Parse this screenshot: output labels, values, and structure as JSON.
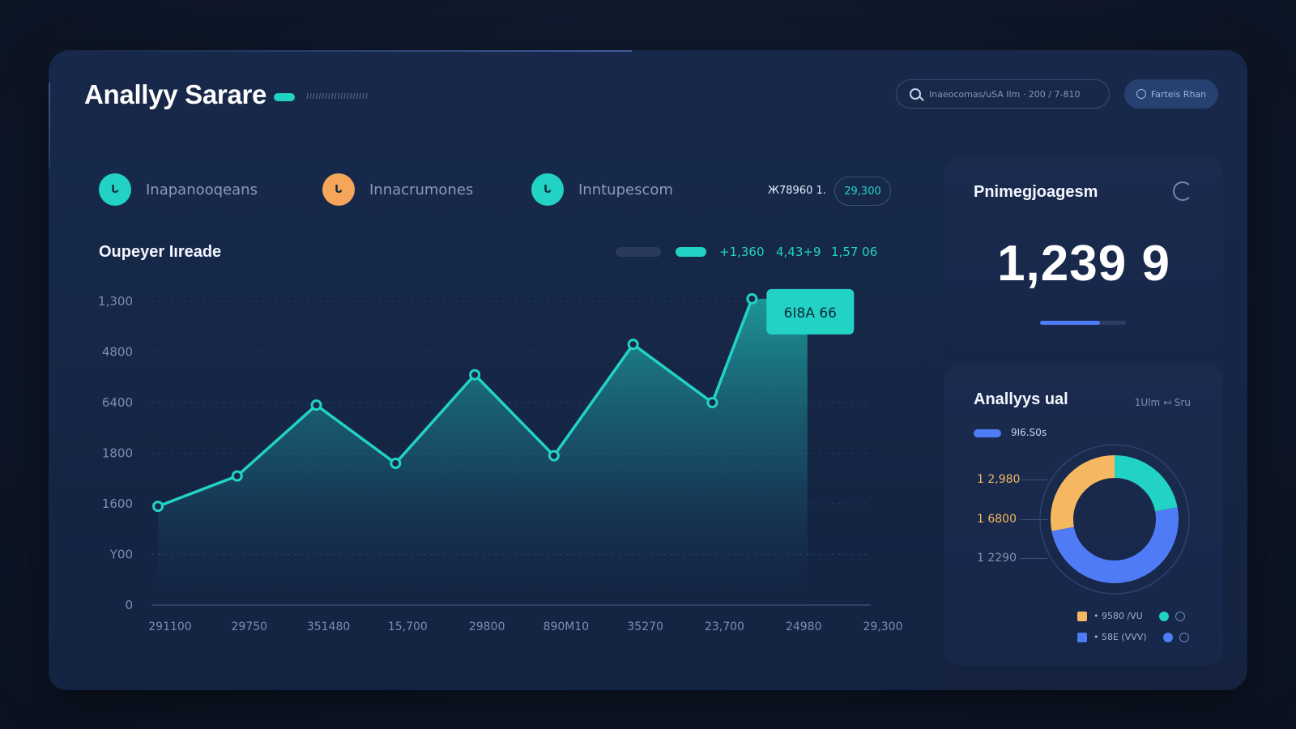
{
  "header": {
    "title": "Anallyy Sarare",
    "subtitle": "ıııııııııııııııııııı",
    "search_text": "Inaeocomas/uSA Ilm · 200 / 7-810",
    "action_label": "Farteis Rhan",
    "accent_color": "#22d3c5"
  },
  "stat_tabs": [
    {
      "label": "Inapanooqeans",
      "icon": "ᒐ",
      "color": "#22d3c5"
    },
    {
      "label": "Innacrumones",
      "icon": "ᒐ",
      "color": "#f5a65b"
    },
    {
      "label": "Inntupescom",
      "icon": "ᒐ",
      "color": "#22d3c5"
    }
  ],
  "tab_value": "Ж78960 1.",
  "tab_pill": "29,300",
  "chart_header": {
    "title": "Oupeyer Iıreade",
    "legend_values": [
      "+1,360",
      "4,43+9",
      "1,57 06"
    ]
  },
  "chart_data": {
    "type": "area",
    "title": "Oupeyer Iıreade",
    "y_tick_labels": [
      "1,300",
      "4800",
      "6400",
      "1800",
      "1600",
      "Y00",
      "0"
    ],
    "x_tick_labels": [
      "291100",
      "29750",
      "351480",
      "15,700",
      "29800",
      "890M10",
      "35270",
      "23,700",
      "24980",
      "29,300"
    ],
    "series": [
      {
        "points": [
          [
            0,
            1.95
          ],
          [
            1,
            2.55
          ],
          [
            2,
            3.95
          ],
          [
            3,
            2.8
          ],
          [
            4,
            4.55
          ],
          [
            5,
            2.95
          ],
          [
            6,
            5.15
          ],
          [
            7,
            4.0
          ],
          [
            7.5,
            6.05
          ],
          [
            8.2,
            6.05
          ]
        ]
      }
    ],
    "y_range": [
      0,
      6
    ],
    "grid": true,
    "callout": "6I8A 66",
    "line_color": "#22d3c5"
  },
  "panel_a": {
    "title": "Pnimegjoagesm",
    "big_number": "1,239 9",
    "progress": 0.7
  },
  "panel_b": {
    "title": "Anallyys ual",
    "meta": "1Ulm  ↤ Sru",
    "legend_text": "9I6.S0s",
    "donut_labels": [
      {
        "text": "1 2,980",
        "color": "#f5b860"
      },
      {
        "text": "1 6800",
        "color": "#f5b860"
      },
      {
        "text": "1 2290",
        "color": "#8391b0"
      }
    ],
    "donut": [
      {
        "name": "teal",
        "value": 0.22,
        "color": "#22d3c5"
      },
      {
        "name": "blue",
        "value": 0.5,
        "color": "#4f7cf6"
      },
      {
        "name": "orange",
        "value": 0.28,
        "color": "#f5b860"
      }
    ],
    "bottom_legend": [
      {
        "square_color": "#f5b860",
        "text": "• 9580 /VU",
        "dot_color": "#22d3c5"
      },
      {
        "square_color": "#4f7cf6",
        "text": "• 58E (VVV)",
        "dot_color": "#4f7cf6"
      }
    ]
  }
}
